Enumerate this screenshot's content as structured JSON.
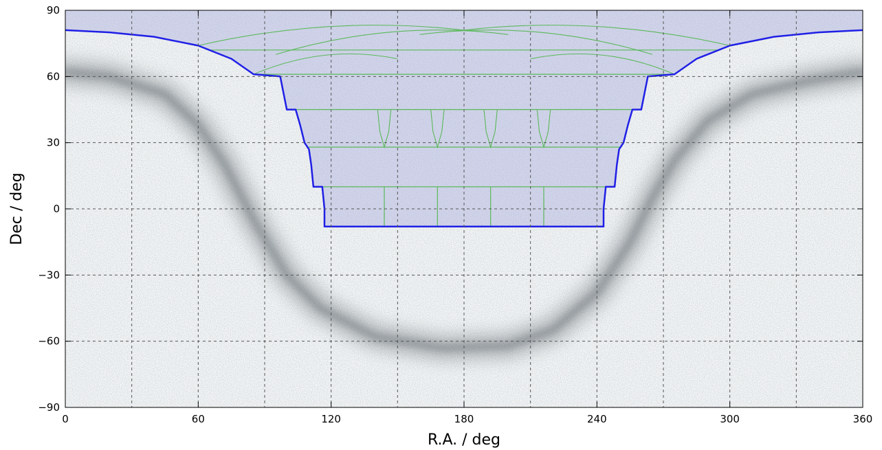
{
  "chart_data": {
    "type": "area",
    "xlabel": "R.A. / deg",
    "ylabel": "Dec / deg",
    "xlim": [
      0,
      360
    ],
    "ylim": [
      -90,
      90
    ],
    "xticks": [
      "0",
      "60",
      "120",
      "180",
      "240",
      "300",
      "360"
    ],
    "yticks": [
      "90",
      "60",
      "30",
      "0",
      "−30",
      "−60",
      "−90"
    ],
    "xtick_values": [
      0,
      60,
      120,
      180,
      240,
      300,
      360
    ],
    "ytick_values": [
      90,
      60,
      30,
      0,
      -30,
      -60,
      -90
    ],
    "grid": true,
    "grid_step_deg": 30,
    "background": "all-sky density map (Galactic band as a dark U-shaped stripe)",
    "footprint_outline": [
      [
        0,
        81
      ],
      [
        20,
        80
      ],
      [
        40,
        78
      ],
      [
        60,
        74
      ],
      [
        75,
        68
      ],
      [
        85,
        61
      ],
      [
        97,
        60
      ],
      [
        100,
        45
      ],
      [
        104,
        45
      ],
      [
        106,
        38
      ],
      [
        108,
        30
      ],
      [
        110,
        27
      ],
      [
        111,
        20
      ],
      [
        112,
        10
      ],
      [
        116,
        10
      ],
      [
        117,
        0
      ],
      [
        117,
        -8
      ],
      [
        243,
        -8
      ],
      [
        243,
        0
      ],
      [
        244,
        10
      ],
      [
        248,
        10
      ],
      [
        249,
        20
      ],
      [
        250,
        27
      ],
      [
        252,
        30
      ],
      [
        254,
        38
      ],
      [
        256,
        45
      ],
      [
        260,
        45
      ],
      [
        263,
        60
      ],
      [
        275,
        61
      ],
      [
        285,
        68
      ],
      [
        300,
        74
      ],
      [
        320,
        78
      ],
      [
        340,
        80
      ],
      [
        360,
        81
      ]
    ],
    "tile_rows_dec": [
      72,
      61,
      45,
      28,
      10
    ],
    "tile_meridians_ra": [
      144,
      168,
      192,
      216
    ],
    "colors": {
      "footprint": "#1f1fe6",
      "footprint_fill": "#aab0dd",
      "tiles": "#5ab85a",
      "grid": "#555555",
      "galactic_band": "#3f4a50"
    }
  }
}
